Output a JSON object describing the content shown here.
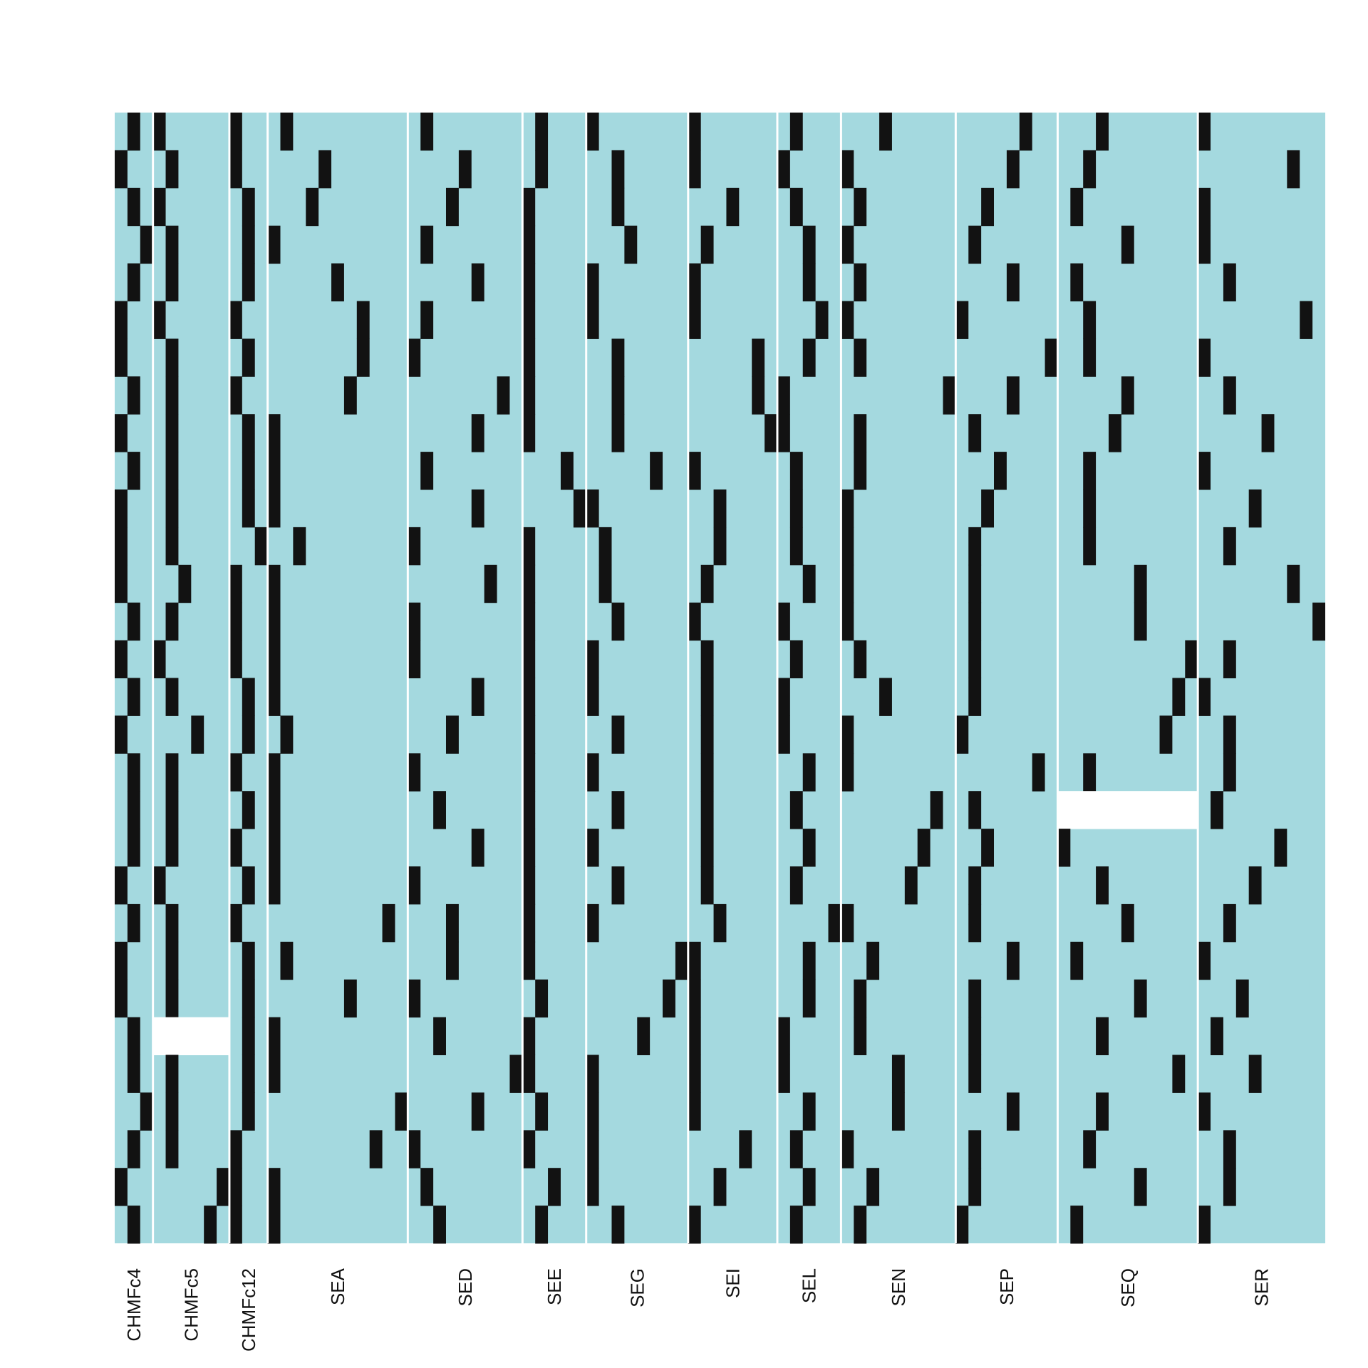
{
  "chart_data": {
    "type": "heatmap",
    "title": "",
    "xlabel": "",
    "ylabel": "",
    "n_rows": 30,
    "grid": false,
    "legend": "none",
    "colors": {
      "absent": "#a4d9df",
      "present": "#121212",
      "missing": "#ffffff",
      "separator": "#ffffff"
    },
    "groups": [
      {
        "label": "CHMFc4",
        "columns": 3,
        "presence": [
          [
            1
          ],
          [
            0
          ],
          [
            1
          ],
          [
            2
          ],
          [
            1
          ],
          [
            0
          ],
          [
            0
          ],
          [
            1
          ],
          [
            0
          ],
          [
            1
          ],
          [
            0
          ],
          [
            0
          ],
          [
            0
          ],
          [
            1
          ],
          [
            0
          ],
          [
            1
          ],
          [
            0
          ],
          [
            1
          ],
          [
            1
          ],
          [
            1
          ],
          [
            0
          ],
          [
            1
          ],
          [
            0
          ],
          [
            0
          ],
          [
            1
          ],
          [
            1
          ],
          [
            2
          ],
          [
            1
          ],
          [
            0
          ],
          [
            1
          ]
        ]
      },
      {
        "label": "CHMFc5",
        "columns": 6,
        "presence": [
          [
            0
          ],
          [
            1
          ],
          [
            0
          ],
          [
            1
          ],
          [
            1
          ],
          [
            0
          ],
          [
            1
          ],
          [
            1
          ],
          [
            1
          ],
          [
            1
          ],
          [
            1
          ],
          [
            1
          ],
          [
            2
          ],
          [
            1
          ],
          [
            0
          ],
          [
            1
          ],
          [
            3
          ],
          [
            1
          ],
          [
            1
          ],
          [
            1
          ],
          [
            0
          ],
          [
            1
          ],
          [
            1
          ],
          [
            1
          ],
          [
            null
          ],
          [
            1
          ],
          [
            1
          ],
          [
            1
          ],
          [
            5
          ],
          [
            4
          ]
        ]
      },
      {
        "label": "CHMFc12",
        "columns": 3,
        "presence": [
          [
            0
          ],
          [
            0
          ],
          [
            1
          ],
          [
            1
          ],
          [
            1
          ],
          [
            0
          ],
          [
            1
          ],
          [
            0
          ],
          [
            1
          ],
          [
            1
          ],
          [
            1
          ],
          [
            2
          ],
          [
            0
          ],
          [
            0
          ],
          [
            0
          ],
          [
            1
          ],
          [
            1
          ],
          [
            0
          ],
          [
            1
          ],
          [
            0
          ],
          [
            1
          ],
          [
            0
          ],
          [
            1
          ],
          [
            1
          ],
          [
            1
          ],
          [
            1
          ],
          [
            1
          ],
          [
            0
          ],
          [
            0
          ],
          [
            0
          ]
        ]
      },
      {
        "label": "SEA",
        "columns": 11,
        "presence": [
          [
            1
          ],
          [
            4
          ],
          [
            3
          ],
          [
            0
          ],
          [
            5
          ],
          [
            7
          ],
          [
            7
          ],
          [
            6
          ],
          [
            0
          ],
          [
            0
          ],
          [
            0
          ],
          [
            2
          ],
          [
            0
          ],
          [
            0
          ],
          [
            0
          ],
          [
            0
          ],
          [
            1
          ],
          [
            0
          ],
          [
            0
          ],
          [
            0
          ],
          [
            0
          ],
          [
            9
          ],
          [
            1
          ],
          [
            6
          ],
          [
            0
          ],
          [
            0
          ],
          [
            10
          ],
          [
            8
          ],
          [
            0
          ],
          [
            0
          ]
        ]
      },
      {
        "label": "SED",
        "columns": 9,
        "presence": [
          [
            1
          ],
          [
            4
          ],
          [
            3
          ],
          [
            1
          ],
          [
            5
          ],
          [
            1
          ],
          [
            0
          ],
          [
            7
          ],
          [
            5
          ],
          [
            1
          ],
          [
            5
          ],
          [
            0
          ],
          [
            6
          ],
          [
            0
          ],
          [
            0
          ],
          [
            5
          ],
          [
            3
          ],
          [
            0
          ],
          [
            2
          ],
          [
            5
          ],
          [
            0
          ],
          [
            3
          ],
          [
            3
          ],
          [
            0
          ],
          [
            2
          ],
          [
            8
          ],
          [
            5
          ],
          [
            0
          ],
          [
            1
          ],
          [
            2
          ]
        ]
      },
      {
        "label": "SEE",
        "columns": 5,
        "presence": [
          [
            1
          ],
          [
            1
          ],
          [
            0
          ],
          [
            0
          ],
          [
            0
          ],
          [
            0
          ],
          [
            0
          ],
          [
            0
          ],
          [
            0
          ],
          [
            3
          ],
          [
            4
          ],
          [
            0
          ],
          [
            0
          ],
          [
            0
          ],
          [
            0
          ],
          [
            0
          ],
          [
            0
          ],
          [
            0
          ],
          [
            0
          ],
          [
            0
          ],
          [
            0
          ],
          [
            0
          ],
          [
            0
          ],
          [
            1
          ],
          [
            0
          ],
          [
            0
          ],
          [
            1
          ],
          [
            0
          ],
          [
            2
          ],
          [
            1
          ]
        ]
      },
      {
        "label": "SEG",
        "columns": 8,
        "presence": [
          [
            0
          ],
          [
            2
          ],
          [
            2
          ],
          [
            3
          ],
          [
            0
          ],
          [
            0
          ],
          [
            2
          ],
          [
            2
          ],
          [
            2
          ],
          [
            5
          ],
          [
            0
          ],
          [
            1
          ],
          [
            1
          ],
          [
            2
          ],
          [
            0
          ],
          [
            0
          ],
          [
            2
          ],
          [
            0
          ],
          [
            2
          ],
          [
            0
          ],
          [
            2
          ],
          [
            0
          ],
          [
            7
          ],
          [
            6
          ],
          [
            4
          ],
          [
            0
          ],
          [
            0
          ],
          [
            0
          ],
          [
            0
          ],
          [
            2
          ]
        ]
      },
      {
        "label": "SEI",
        "columns": 7,
        "presence": [
          [
            0
          ],
          [
            0
          ],
          [
            3
          ],
          [
            1
          ],
          [
            0
          ],
          [
            0
          ],
          [
            5
          ],
          [
            5
          ],
          [
            6
          ],
          [
            0
          ],
          [
            2
          ],
          [
            2
          ],
          [
            1
          ],
          [
            0
          ],
          [
            1
          ],
          [
            1
          ],
          [
            1
          ],
          [
            1
          ],
          [
            1
          ],
          [
            1
          ],
          [
            1
          ],
          [
            2
          ],
          [
            0
          ],
          [
            0
          ],
          [
            0
          ],
          [
            0
          ],
          [
            0
          ],
          [
            4
          ],
          [
            2
          ],
          [
            0
          ]
        ]
      },
      {
        "label": "SEL",
        "columns": 5,
        "presence": [
          [
            1
          ],
          [
            0
          ],
          [
            1
          ],
          [
            2
          ],
          [
            2
          ],
          [
            3
          ],
          [
            2
          ],
          [
            0
          ],
          [
            0
          ],
          [
            1
          ],
          [
            1
          ],
          [
            1
          ],
          [
            2
          ],
          [
            0
          ],
          [
            1
          ],
          [
            0
          ],
          [
            0
          ],
          [
            2
          ],
          [
            1
          ],
          [
            2
          ],
          [
            1
          ],
          [
            4
          ],
          [
            2
          ],
          [
            2
          ],
          [
            0
          ],
          [
            0
          ],
          [
            2
          ],
          [
            1
          ],
          [
            2
          ],
          [
            1
          ]
        ]
      },
      {
        "label": "SEN",
        "columns": 9,
        "presence": [
          [
            3
          ],
          [
            0
          ],
          [
            1
          ],
          [
            0
          ],
          [
            1
          ],
          [
            0
          ],
          [
            1
          ],
          [
            8
          ],
          [
            1
          ],
          [
            1
          ],
          [
            0
          ],
          [
            0
          ],
          [
            0
          ],
          [
            0
          ],
          [
            1
          ],
          [
            3
          ],
          [
            0
          ],
          [
            0
          ],
          [
            7
          ],
          [
            6
          ],
          [
            5
          ],
          [
            0
          ],
          [
            2
          ],
          [
            1
          ],
          [
            1
          ],
          [
            4
          ],
          [
            4
          ],
          [
            0
          ],
          [
            2
          ],
          [
            1
          ]
        ]
      },
      {
        "label": "SEP",
        "columns": 8,
        "presence": [
          [
            5
          ],
          [
            4
          ],
          [
            2
          ],
          [
            1
          ],
          [
            4
          ],
          [
            0
          ],
          [
            7
          ],
          [
            4
          ],
          [
            1
          ],
          [
            3
          ],
          [
            2
          ],
          [
            1
          ],
          [
            1
          ],
          [
            1
          ],
          [
            1
          ],
          [
            1
          ],
          [
            0
          ],
          [
            6
          ],
          [
            1
          ],
          [
            2
          ],
          [
            1
          ],
          [
            1
          ],
          [
            4
          ],
          [
            1
          ],
          [
            1
          ],
          [
            1
          ],
          [
            4
          ],
          [
            1
          ],
          [
            1
          ],
          [
            0
          ]
        ]
      },
      {
        "label": "SEQ",
        "columns": 11,
        "presence": [
          [
            3
          ],
          [
            2
          ],
          [
            1
          ],
          [
            5
          ],
          [
            1
          ],
          [
            2
          ],
          [
            2
          ],
          [
            5
          ],
          [
            4
          ],
          [
            2
          ],
          [
            2
          ],
          [
            2
          ],
          [
            6
          ],
          [
            6
          ],
          [
            10
          ],
          [
            9
          ],
          [
            8
          ],
          [
            2
          ],
          [
            null
          ],
          [
            0
          ],
          [
            3
          ],
          [
            5
          ],
          [
            1
          ],
          [
            6
          ],
          [
            3
          ],
          [
            9
          ],
          [
            3
          ],
          [
            2
          ],
          [
            6
          ],
          [
            1
          ]
        ]
      },
      {
        "label": "SER",
        "columns": 10,
        "presence": [
          [
            0
          ],
          [
            7
          ],
          [
            0
          ],
          [
            0
          ],
          [
            2
          ],
          [
            8
          ],
          [
            0
          ],
          [
            2
          ],
          [
            5
          ],
          [
            0
          ],
          [
            4
          ],
          [
            2
          ],
          [
            7
          ],
          [
            9
          ],
          [
            2
          ],
          [
            0
          ],
          [
            2
          ],
          [
            2
          ],
          [
            1
          ],
          [
            6
          ],
          [
            4
          ],
          [
            2
          ],
          [
            0
          ],
          [
            3
          ],
          [
            1
          ],
          [
            4
          ],
          [
            0
          ],
          [
            2
          ],
          [
            2
          ],
          [
            0
          ]
        ]
      }
    ]
  }
}
